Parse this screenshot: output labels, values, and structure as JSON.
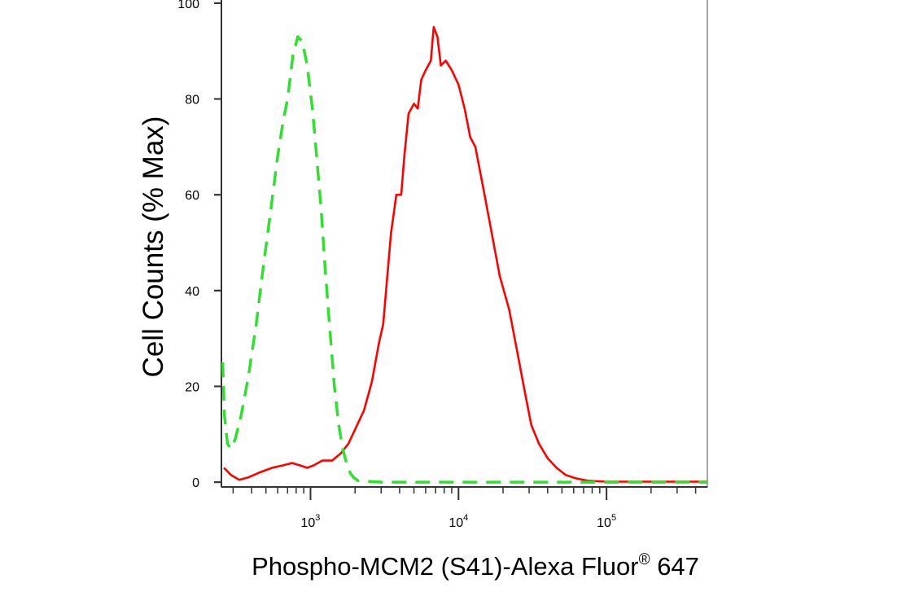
{
  "chart_data": {
    "type": "line",
    "title": "",
    "xlabel": "Phospho-MCM2 (S41)-Alexa Fluor",
    "xlabel_registered": "®",
    "xlabel_suffix": " 647",
    "ylabel": "Cell Counts (% Max)",
    "x_scale": "log",
    "xlim": [
      250,
      480000
    ],
    "ylim": [
      -1,
      101
    ],
    "y_ticks": [
      {
        "value": 0,
        "label": "0"
      },
      {
        "value": 20,
        "label": "20"
      },
      {
        "value": 40,
        "label": "40"
      },
      {
        "value": 60,
        "label": "60"
      },
      {
        "value": 80,
        "label": "80"
      },
      {
        "value": 100,
        "label": "100"
      }
    ],
    "x_ticks": [
      {
        "value": 1000,
        "base": "10",
        "exp": "3"
      },
      {
        "value": 10000,
        "base": "10",
        "exp": "4"
      },
      {
        "value": 100000,
        "base": "10",
        "exp": "5"
      }
    ],
    "series": [
      {
        "color": "#ff0000",
        "dash": "solid",
        "points": [
          [
            260,
            3
          ],
          [
            290,
            1.5
          ],
          [
            330,
            0.5
          ],
          [
            380,
            1
          ],
          [
            450,
            2
          ],
          [
            550,
            3
          ],
          [
            650,
            3.5
          ],
          [
            750,
            4
          ],
          [
            850,
            3.5
          ],
          [
            950,
            3
          ],
          [
            1050,
            3.5
          ],
          [
            1200,
            4.5
          ],
          [
            1400,
            4.5
          ],
          [
            1600,
            6
          ],
          [
            1800,
            8
          ],
          [
            2000,
            11
          ],
          [
            2300,
            15
          ],
          [
            2600,
            21
          ],
          [
            2900,
            29
          ],
          [
            3100,
            33
          ],
          [
            3300,
            43
          ],
          [
            3500,
            52
          ],
          [
            3800,
            60
          ],
          [
            4100,
            60
          ],
          [
            4300,
            68
          ],
          [
            4600,
            77
          ],
          [
            5000,
            79
          ],
          [
            5300,
            78
          ],
          [
            5600,
            84
          ],
          [
            6000,
            86
          ],
          [
            6500,
            88
          ],
          [
            6800,
            95
          ],
          [
            7200,
            93
          ],
          [
            7600,
            87
          ],
          [
            8200,
            88
          ],
          [
            9000,
            86
          ],
          [
            10000,
            83
          ],
          [
            11000,
            78
          ],
          [
            12000,
            72
          ],
          [
            13000,
            70
          ],
          [
            15000,
            60
          ],
          [
            17000,
            51
          ],
          [
            19000,
            43
          ],
          [
            22000,
            36
          ],
          [
            25000,
            27
          ],
          [
            28000,
            19
          ],
          [
            31000,
            12
          ],
          [
            35000,
            8
          ],
          [
            40000,
            5
          ],
          [
            46000,
            3
          ],
          [
            53000,
            1.5
          ],
          [
            62000,
            0.8
          ],
          [
            75000,
            0.3
          ],
          [
            100000,
            0.1
          ],
          [
            200000,
            0.1
          ],
          [
            480000,
            0.1
          ]
        ]
      },
      {
        "color": "#33dd33",
        "dash": "dashed",
        "points": [
          [
            255,
            25
          ],
          [
            262,
            14
          ],
          [
            275,
            8
          ],
          [
            290,
            7
          ],
          [
            310,
            9
          ],
          [
            340,
            14
          ],
          [
            380,
            22
          ],
          [
            430,
            33
          ],
          [
            480,
            45
          ],
          [
            540,
            57
          ],
          [
            600,
            68
          ],
          [
            650,
            75
          ],
          [
            700,
            80
          ],
          [
            760,
            89
          ],
          [
            820,
            93
          ],
          [
            880,
            92
          ],
          [
            950,
            87
          ],
          [
            1030,
            78
          ],
          [
            1100,
            68
          ],
          [
            1180,
            57
          ],
          [
            1260,
            44
          ],
          [
            1350,
            32
          ],
          [
            1450,
            20
          ],
          [
            1550,
            12
          ],
          [
            1650,
            7
          ],
          [
            1750,
            4
          ],
          [
            1850,
            2
          ],
          [
            1950,
            1
          ],
          [
            2100,
            0.3
          ],
          [
            3000,
            0
          ],
          [
            10000,
            0
          ],
          [
            480000,
            0
          ]
        ]
      }
    ]
  }
}
